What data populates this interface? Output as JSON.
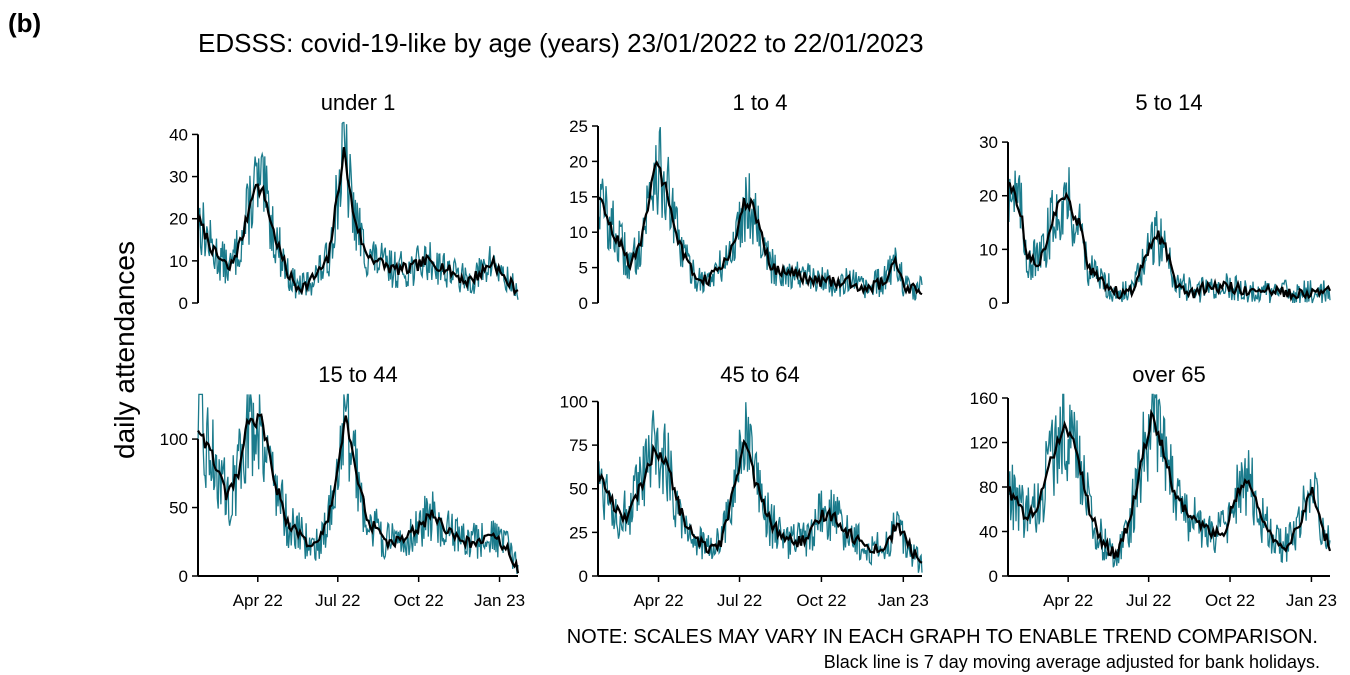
{
  "panel_label": "(b)",
  "chart_data": {
    "type": "line",
    "title": "EDSSS: covid-19-like by age (years) 23/01/2022 to 22/01/2023",
    "ylabel": "daily attendances",
    "x_ticks": [
      "Apr 22",
      "Jul 22",
      "Oct 22",
      "Jan 23"
    ],
    "x_range": [
      "2022-01-23",
      "2023-01-22"
    ],
    "colors": {
      "daily": "#1b7b8c",
      "average": "#000000"
    },
    "panels": [
      {
        "name": "under 1",
        "ylim": [
          0,
          42
        ],
        "yticks": [
          0,
          10,
          20,
          30,
          40
        ],
        "trend": [
          [
            "2022-01-23",
            20
          ],
          [
            "2022-02-10",
            12
          ],
          [
            "2022-02-28",
            8
          ],
          [
            "2022-03-15",
            16
          ],
          [
            "2022-03-28",
            28
          ],
          [
            "2022-04-08",
            26
          ],
          [
            "2022-04-20",
            16
          ],
          [
            "2022-05-05",
            7
          ],
          [
            "2022-05-15",
            4
          ],
          [
            "2022-05-25",
            4
          ],
          [
            "2022-06-08",
            7
          ],
          [
            "2022-06-20",
            10
          ],
          [
            "2022-07-01",
            26
          ],
          [
            "2022-07-08",
            36
          ],
          [
            "2022-07-18",
            22
          ],
          [
            "2022-08-01",
            12
          ],
          [
            "2022-08-15",
            10
          ],
          [
            "2022-09-01",
            8
          ],
          [
            "2022-09-20",
            8
          ],
          [
            "2022-10-10",
            10
          ],
          [
            "2022-10-25",
            9
          ],
          [
            "2022-11-10",
            7
          ],
          [
            "2022-11-25",
            5
          ],
          [
            "2022-12-10",
            7
          ],
          [
            "2022-12-25",
            10
          ],
          [
            "2023-01-05",
            6
          ],
          [
            "2023-01-22",
            3
          ]
        ]
      },
      {
        "name": "1 to 4",
        "ylim": [
          0,
          25
        ],
        "yticks": [
          0,
          5,
          10,
          15,
          20,
          25
        ],
        "trend": [
          [
            "2022-01-23",
            15
          ],
          [
            "2022-02-10",
            10
          ],
          [
            "2022-03-01",
            5
          ],
          [
            "2022-03-15",
            10
          ],
          [
            "2022-03-28",
            20
          ],
          [
            "2022-04-10",
            16
          ],
          [
            "2022-04-25",
            8
          ],
          [
            "2022-05-10",
            4
          ],
          [
            "2022-05-25",
            3
          ],
          [
            "2022-06-10",
            5
          ],
          [
            "2022-06-25",
            8
          ],
          [
            "2022-07-05",
            14
          ],
          [
            "2022-07-15",
            14
          ],
          [
            "2022-07-25",
            10
          ],
          [
            "2022-08-05",
            5
          ],
          [
            "2022-09-01",
            4
          ],
          [
            "2022-10-01",
            3
          ],
          [
            "2022-11-01",
            3
          ],
          [
            "2022-11-20",
            2
          ],
          [
            "2022-12-10",
            3
          ],
          [
            "2022-12-22",
            6
          ],
          [
            "2023-01-05",
            2
          ],
          [
            "2023-01-22",
            2
          ]
        ]
      },
      {
        "name": "5 to 14",
        "ylim": [
          0,
          33
        ],
        "yticks": [
          0,
          10,
          20,
          30
        ],
        "trend": [
          [
            "2022-01-23",
            23
          ],
          [
            "2022-02-05",
            18
          ],
          [
            "2022-02-15",
            8
          ],
          [
            "2022-03-01",
            8
          ],
          [
            "2022-03-15",
            16
          ],
          [
            "2022-03-28",
            20
          ],
          [
            "2022-04-15",
            14
          ],
          [
            "2022-04-25",
            6
          ],
          [
            "2022-05-10",
            4
          ],
          [
            "2022-05-25",
            2
          ],
          [
            "2022-06-10",
            2
          ],
          [
            "2022-06-25",
            7
          ],
          [
            "2022-07-10",
            13
          ],
          [
            "2022-07-20",
            10
          ],
          [
            "2022-08-01",
            4
          ],
          [
            "2022-08-20",
            2
          ],
          [
            "2022-09-10",
            3
          ],
          [
            "2022-10-01",
            3
          ],
          [
            "2022-11-01",
            2
          ],
          [
            "2022-12-01",
            2
          ],
          [
            "2022-12-20",
            2
          ],
          [
            "2023-01-22",
            2
          ]
        ]
      },
      {
        "name": "15 to 44",
        "ylim": [
          0,
          130
        ],
        "yticks": [
          0,
          50,
          100
        ],
        "trend": [
          [
            "2022-01-23",
            108
          ],
          [
            "2022-02-10",
            85
          ],
          [
            "2022-02-25",
            57
          ],
          [
            "2022-03-10",
            75
          ],
          [
            "2022-03-20",
            110
          ],
          [
            "2022-04-05",
            115
          ],
          [
            "2022-04-20",
            70
          ],
          [
            "2022-05-05",
            38
          ],
          [
            "2022-05-20",
            30
          ],
          [
            "2022-06-05",
            20
          ],
          [
            "2022-06-20",
            40
          ],
          [
            "2022-07-01",
            80
          ],
          [
            "2022-07-10",
            115
          ],
          [
            "2022-07-20",
            80
          ],
          [
            "2022-08-05",
            40
          ],
          [
            "2022-08-25",
            25
          ],
          [
            "2022-09-10",
            25
          ],
          [
            "2022-10-01",
            35
          ],
          [
            "2022-10-15",
            45
          ],
          [
            "2022-10-30",
            35
          ],
          [
            "2022-11-20",
            25
          ],
          [
            "2022-12-10",
            25
          ],
          [
            "2022-12-25",
            28
          ],
          [
            "2023-01-10",
            20
          ],
          [
            "2023-01-22",
            5
          ]
        ]
      },
      {
        "name": "45 to 64",
        "ylim": [
          0,
          102
        ],
        "yticks": [
          0,
          25,
          50,
          75,
          100
        ],
        "trend": [
          [
            "2022-01-23",
            60
          ],
          [
            "2022-02-10",
            40
          ],
          [
            "2022-02-25",
            33
          ],
          [
            "2022-03-15",
            55
          ],
          [
            "2022-03-28",
            73
          ],
          [
            "2022-04-10",
            65
          ],
          [
            "2022-04-25",
            38
          ],
          [
            "2022-05-10",
            22
          ],
          [
            "2022-05-25",
            16
          ],
          [
            "2022-06-10",
            20
          ],
          [
            "2022-06-25",
            50
          ],
          [
            "2022-07-08",
            78
          ],
          [
            "2022-07-18",
            55
          ],
          [
            "2022-08-05",
            30
          ],
          [
            "2022-08-25",
            20
          ],
          [
            "2022-09-15",
            20
          ],
          [
            "2022-10-01",
            35
          ],
          [
            "2022-10-15",
            35
          ],
          [
            "2022-10-30",
            25
          ],
          [
            "2022-11-20",
            17
          ],
          [
            "2022-12-10",
            15
          ],
          [
            "2022-12-25",
            30
          ],
          [
            "2023-01-10",
            15
          ],
          [
            "2023-01-22",
            6
          ]
        ]
      },
      {
        "name": "over 65",
        "ylim": [
          0,
          160
        ],
        "yticks": [
          0,
          40,
          80,
          120,
          160
        ],
        "trend": [
          [
            "2022-01-23",
            78
          ],
          [
            "2022-02-10",
            55
          ],
          [
            "2022-02-25",
            60
          ],
          [
            "2022-03-15",
            110
          ],
          [
            "2022-03-28",
            138
          ],
          [
            "2022-04-10",
            115
          ],
          [
            "2022-04-25",
            60
          ],
          [
            "2022-05-10",
            30
          ],
          [
            "2022-05-25",
            18
          ],
          [
            "2022-06-10",
            50
          ],
          [
            "2022-06-25",
            110
          ],
          [
            "2022-07-05",
            145
          ],
          [
            "2022-07-15",
            120
          ],
          [
            "2022-08-01",
            70
          ],
          [
            "2022-08-20",
            50
          ],
          [
            "2022-09-10",
            38
          ],
          [
            "2022-09-25",
            42
          ],
          [
            "2022-10-10",
            75
          ],
          [
            "2022-10-22",
            85
          ],
          [
            "2022-11-05",
            55
          ],
          [
            "2022-11-20",
            30
          ],
          [
            "2022-12-05",
            28
          ],
          [
            "2022-12-20",
            50
          ],
          [
            "2023-01-02",
            80
          ],
          [
            "2023-01-12",
            45
          ],
          [
            "2023-01-22",
            25
          ]
        ]
      }
    ]
  },
  "note": "NOTE: SCALES MAY VARY IN EACH GRAPH TO ENABLE TREND COMPARISON.",
  "caption": "Black line is 7 day moving average adjusted for bank holidays."
}
